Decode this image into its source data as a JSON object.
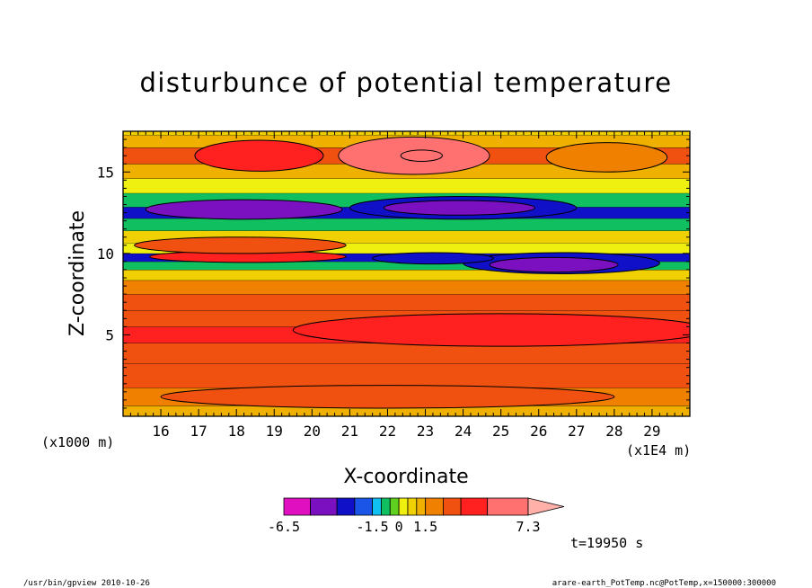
{
  "chart_data": {
    "type": "heatmap",
    "title": "disturbunce of potential temperature",
    "xlabel": "X-coordinate",
    "ylabel": "Z-coordinate",
    "x_unit": "(x1E4 m)",
    "y_unit": "(x1000 m)",
    "xlim": [
      15.0,
      30.0
    ],
    "ylim": [
      0.0,
      17.5
    ],
    "x_ticks": [
      16,
      17,
      18,
      19,
      20,
      21,
      22,
      23,
      24,
      25,
      26,
      27,
      28,
      29
    ],
    "y_ticks": [
      5,
      10,
      15
    ],
    "colorbar": {
      "levels": [
        -6.5,
        -5.0,
        -3.5,
        -2.5,
        -1.5,
        -1.0,
        -0.5,
        0,
        0.5,
        1.0,
        1.5,
        2.5,
        3.5,
        5.0,
        7.3
      ],
      "colors": [
        "#e010c0",
        "#7a10c0",
        "#1010c8",
        "#1a55e8",
        "#10c0f0",
        "#10c060",
        "#60d020",
        "#f0f010",
        "#f0d000",
        "#f0b000",
        "#f08000",
        "#f05010",
        "#ff2020",
        "#ff7070",
        "#ffb0a8"
      ],
      "tick_labels": [
        "-6.5",
        "-1.5",
        "0",
        "1.5",
        "7.3"
      ]
    },
    "bands": [
      {
        "z": 0.3,
        "value": 1.2
      },
      {
        "z": 1.0,
        "value": 1.8
      },
      {
        "z": 2.5,
        "value": 2.6
      },
      {
        "z": 4.0,
        "value": 3.2
      },
      {
        "z": 5.0,
        "value": 3.6
      },
      {
        "z": 6.0,
        "value": 3.3
      },
      {
        "z": 7.0,
        "value": 2.7
      },
      {
        "z": 8.0,
        "value": 1.6
      },
      {
        "z": 8.7,
        "value": 0.6
      },
      {
        "z": 9.3,
        "value": -0.6
      },
      {
        "z": 9.7,
        "value": -2.6
      },
      {
        "z": 10.3,
        "value": 0.2
      },
      {
        "z": 11.0,
        "value": 0.8
      },
      {
        "z": 11.8,
        "value": -0.8
      },
      {
        "z": 12.5,
        "value": -2.8
      },
      {
        "z": 13.2,
        "value": -0.6
      },
      {
        "z": 14.2,
        "value": 0.3
      },
      {
        "z": 15.0,
        "value": 1.2
      },
      {
        "z": 16.0,
        "value": 2.8
      },
      {
        "z": 17.0,
        "value": 1.4
      },
      {
        "z": 17.5,
        "value": 0.8
      }
    ],
    "blobs": [
      {
        "x": 22.7,
        "z": 16.0,
        "rx": 2.0,
        "rz": 1.15,
        "value": 5.5
      },
      {
        "x": 22.9,
        "z": 16.0,
        "rx": 0.55,
        "rz": 0.35,
        "value": 7.0
      },
      {
        "x": 18.6,
        "z": 16.0,
        "rx": 1.7,
        "rz": 0.95,
        "value": 4.6
      },
      {
        "x": 27.8,
        "z": 15.9,
        "rx": 1.6,
        "rz": 0.9,
        "value": 2.0
      },
      {
        "x": 18.2,
        "z": 12.7,
        "rx": 2.6,
        "rz": 0.6,
        "value": -3.6
      },
      {
        "x": 24.0,
        "z": 12.8,
        "rx": 3.0,
        "rz": 0.7,
        "value": -3.4
      },
      {
        "x": 23.9,
        "z": 12.8,
        "rx": 2.0,
        "rz": 0.45,
        "value": -4.5
      },
      {
        "x": 18.3,
        "z": 9.8,
        "rx": 2.6,
        "rz": 0.35,
        "value": 4.8
      },
      {
        "x": 18.1,
        "z": 10.5,
        "rx": 2.8,
        "rz": 0.5,
        "value": 2.8
      },
      {
        "x": 26.6,
        "z": 9.4,
        "rx": 2.6,
        "rz": 0.65,
        "value": -3.4
      },
      {
        "x": 26.4,
        "z": 9.3,
        "rx": 1.7,
        "rz": 0.45,
        "value": -4.6
      },
      {
        "x": 23.2,
        "z": 9.7,
        "rx": 1.6,
        "rz": 0.35,
        "value": -2.8
      },
      {
        "x": 25.0,
        "z": 5.3,
        "rx": 5.5,
        "rz": 1.0,
        "value": 4.2
      },
      {
        "x": 22.0,
        "z": 1.2,
        "rx": 6.0,
        "rz": 0.7,
        "value": 2.7
      }
    ]
  },
  "annotations": {
    "time": "t=19950 s",
    "footer_left": "/usr/bin/gpview   2010-10-26",
    "footer_right": "arare-earth_PotTemp.nc@PotTemp,x=150000:300000"
  }
}
